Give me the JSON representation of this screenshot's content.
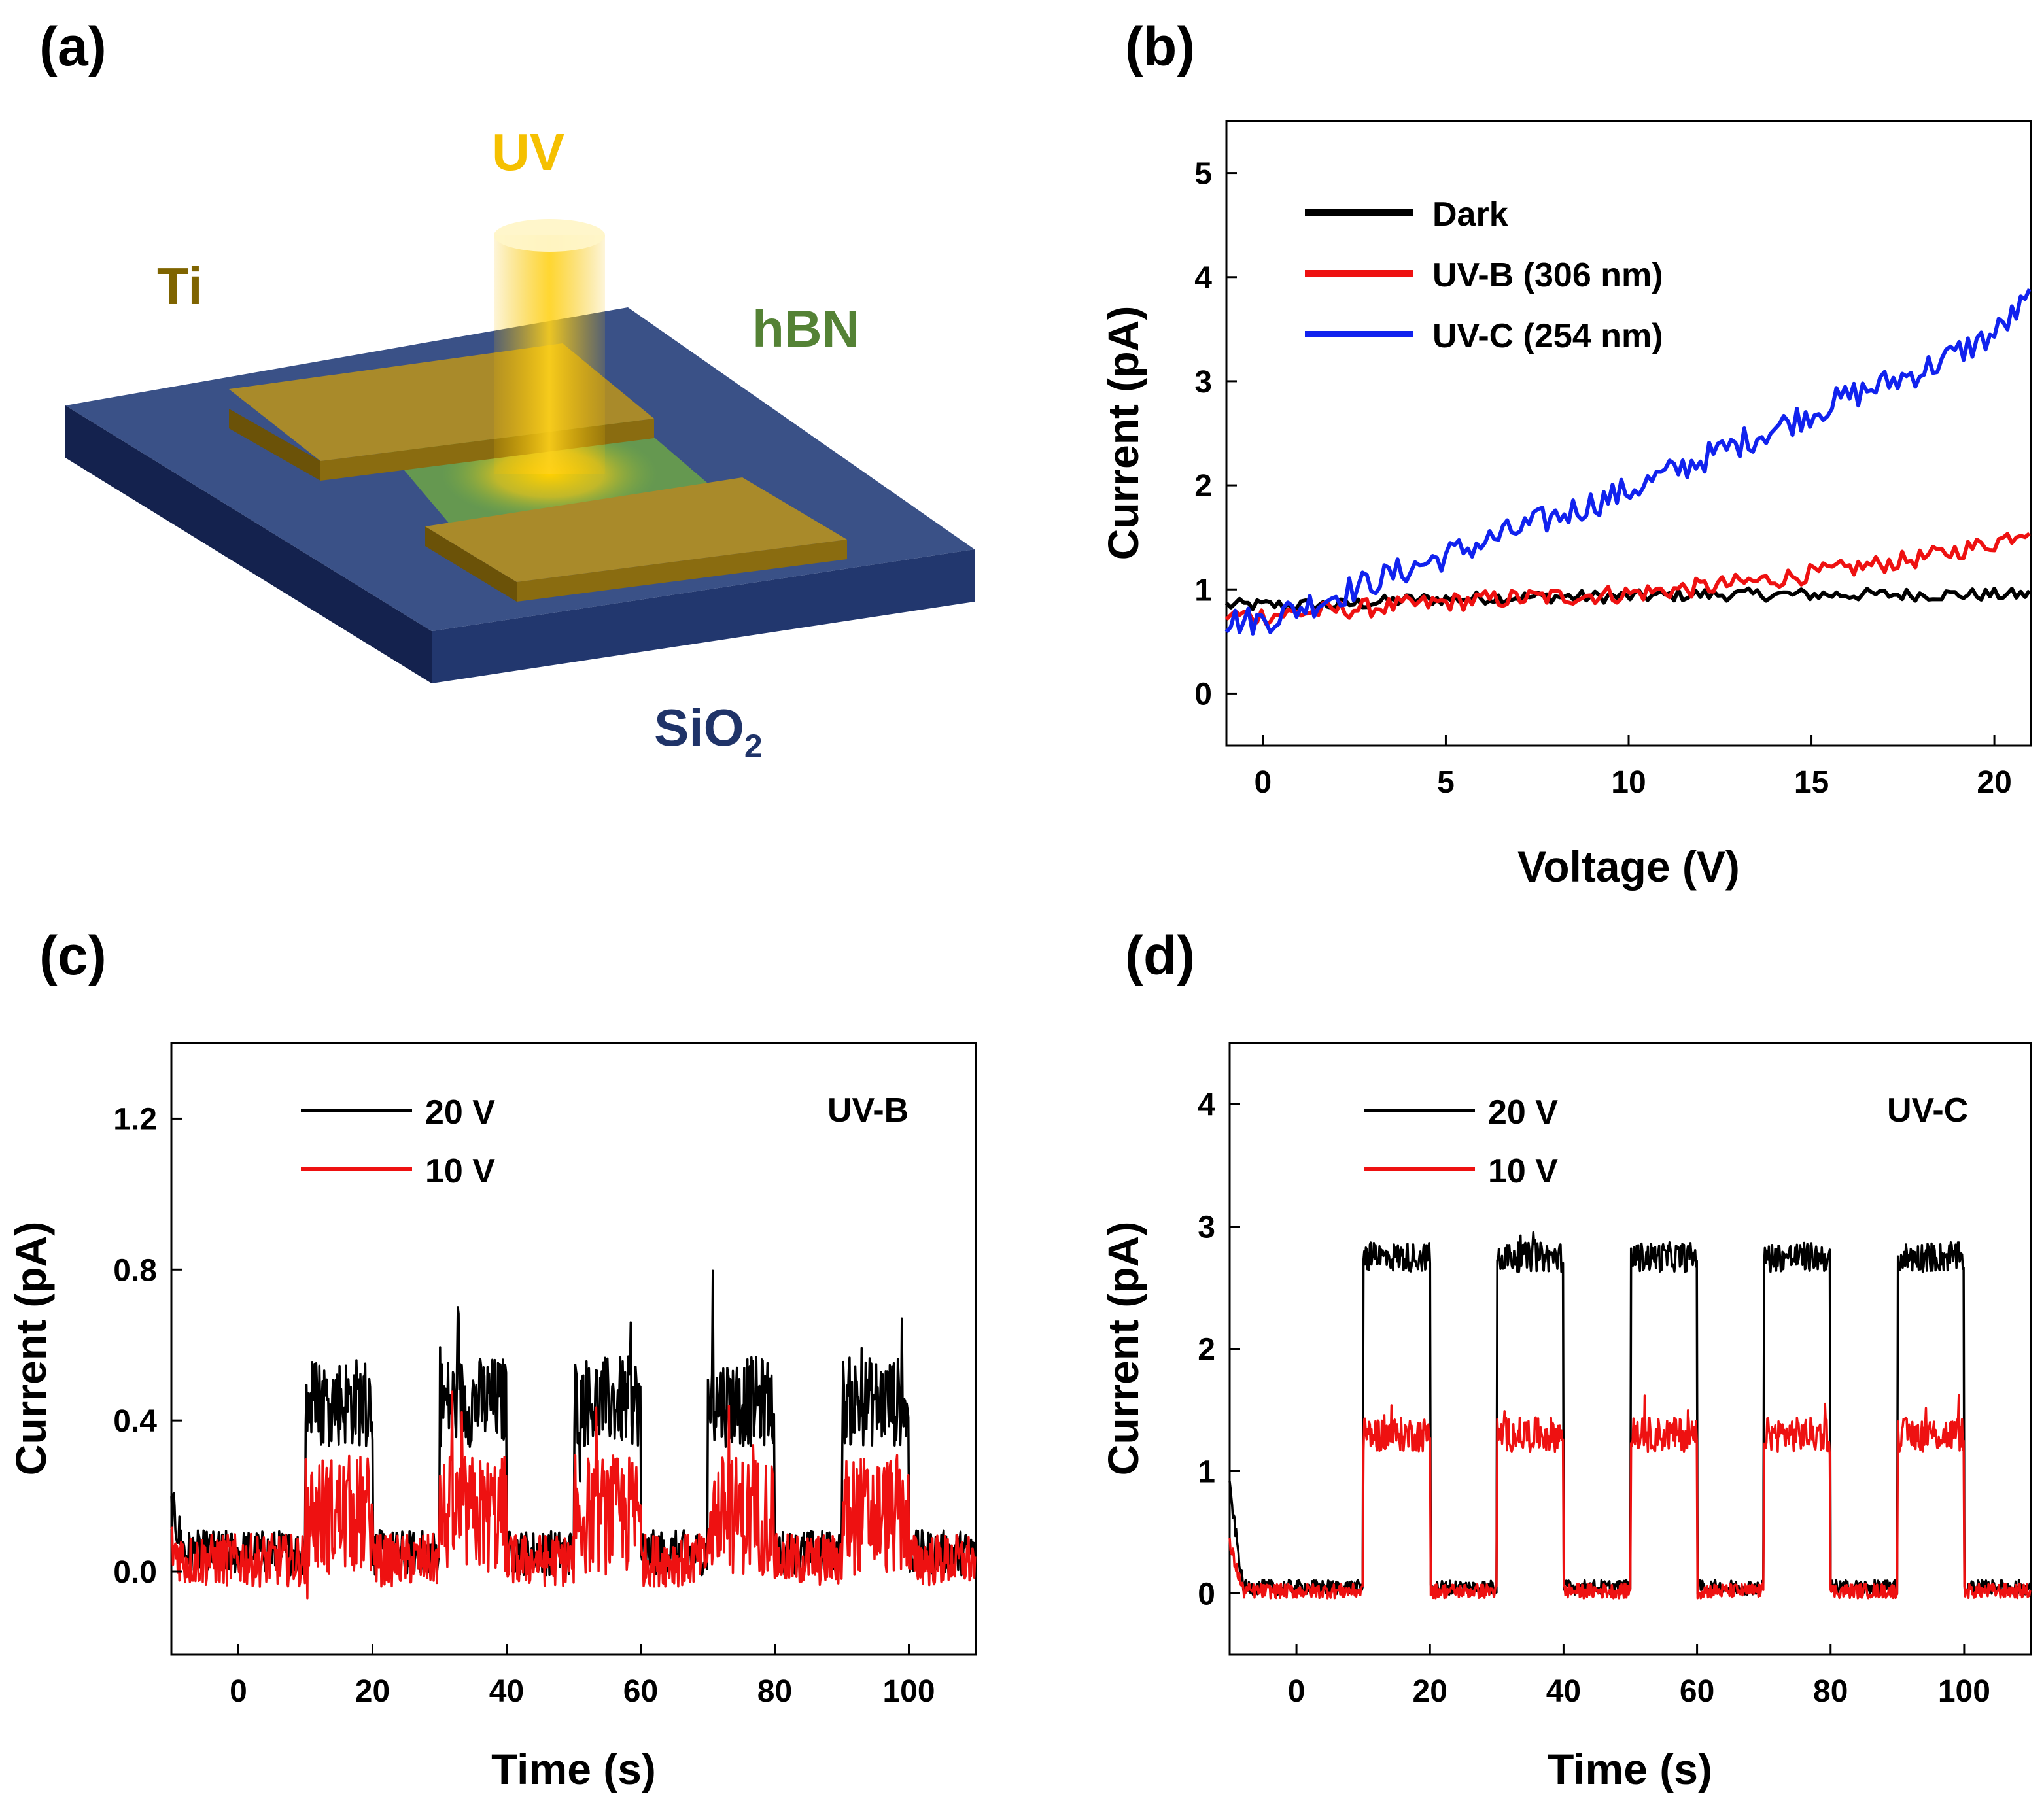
{
  "panels": {
    "a": "(a)",
    "b": "(b)",
    "c": "(c)",
    "d": "(d)"
  },
  "schematic": {
    "beam": "UV",
    "contact": "Ti",
    "channel": "hBN",
    "substrate": "SiO",
    "substrate_sub": "2",
    "colors": {
      "beam": "#f5c000",
      "contact": "#7f6400",
      "channel": "#548235",
      "substrate": "#1f3368"
    }
  },
  "chart_data": [
    {
      "id": "b",
      "type": "line",
      "xlabel": "Voltage (V)",
      "ylabel": "Current (pA)",
      "xlim": [
        -1,
        21
      ],
      "ylim": [
        -0.5,
        5.5
      ],
      "xticks": [
        "0",
        "5",
        "10",
        "15",
        "20"
      ],
      "yticks": [
        "0",
        "1",
        "2",
        "3",
        "4",
        "5"
      ],
      "legend": "top-left",
      "x": [
        0,
        2,
        4,
        6,
        8,
        10,
        12,
        14,
        16,
        18,
        20,
        21
      ],
      "series": [
        {
          "name": "Dark",
          "color": "#000000",
          "values": [
            0.85,
            0.85,
            0.9,
            0.92,
            0.93,
            0.93,
            0.95,
            0.95,
            0.95,
            0.95,
            0.95,
            0.95
          ]
        },
        {
          "name": "UV-B (306 nm)",
          "color": "#ee1111",
          "values": [
            0.75,
            0.8,
            0.85,
            0.9,
            0.93,
            0.96,
            1.02,
            1.1,
            1.2,
            1.3,
            1.45,
            1.6
          ]
        },
        {
          "name": "UV-C (254 nm)",
          "color": "#1122ee",
          "values": [
            0.7,
            0.95,
            1.2,
            1.45,
            1.7,
            1.95,
            2.25,
            2.55,
            2.85,
            3.1,
            3.45,
            3.8
          ]
        }
      ]
    },
    {
      "id": "c",
      "type": "line",
      "xlabel": "Time (s)",
      "ylabel": "Current (pA)",
      "xlim": [
        -10,
        110
      ],
      "ylim": [
        -0.22,
        1.4
      ],
      "xticks": [
        "0",
        "20",
        "40",
        "60",
        "80",
        "100"
      ],
      "yticks": [
        "0.0",
        "0.4",
        "0.8",
        "1.2"
      ],
      "legend": "top-left",
      "annotation": "UV-B",
      "on_intervals": [
        [
          10,
          20
        ],
        [
          30,
          40
        ],
        [
          50,
          60
        ],
        [
          70,
          80
        ],
        [
          90,
          100
        ]
      ],
      "series": [
        {
          "name": "20 V",
          "color": "#000000",
          "off_value": 0.05,
          "on_value": 0.45
        },
        {
          "name": "10 V",
          "color": "#ee1111",
          "off_value": 0.03,
          "on_value": 0.15
        }
      ]
    },
    {
      "id": "d",
      "type": "line",
      "xlabel": "Time (s)",
      "ylabel": "Current (pA)",
      "xlim": [
        -10,
        110
      ],
      "ylim": [
        -0.5,
        4.5
      ],
      "xticks": [
        "0",
        "20",
        "40",
        "60",
        "80",
        "100"
      ],
      "yticks": [
        "0",
        "1",
        "2",
        "3",
        "4"
      ],
      "legend": "top-left",
      "annotation": "UV-C",
      "on_intervals": [
        [
          10,
          20
        ],
        [
          30,
          40
        ],
        [
          50,
          60
        ],
        [
          70,
          80
        ],
        [
          90,
          100
        ]
      ],
      "series": [
        {
          "name": "20 V",
          "color": "#000000",
          "off_value": 0.05,
          "on_value": 2.75
        },
        {
          "name": "10 V",
          "color": "#ee1111",
          "off_value": 0.02,
          "on_value": 1.3
        }
      ]
    }
  ]
}
